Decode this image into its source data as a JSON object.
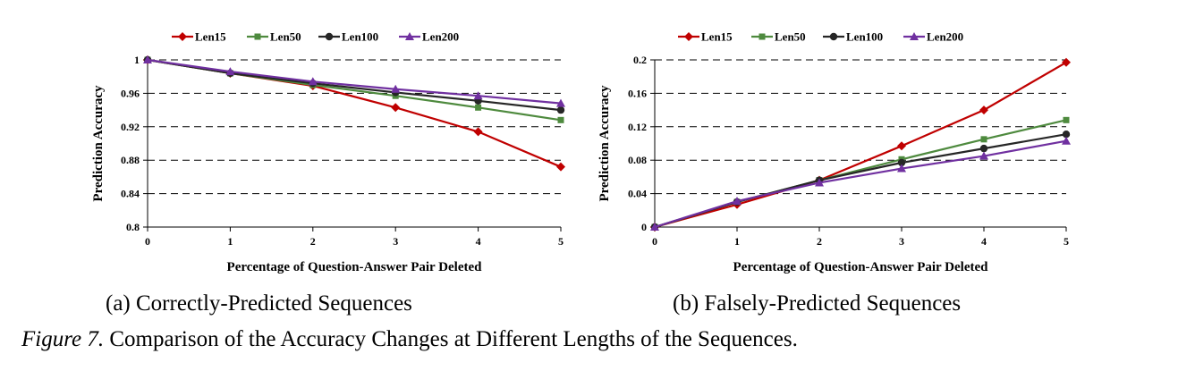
{
  "chart_data": [
    {
      "type": "line",
      "x": [
        0,
        1,
        2,
        3,
        4,
        5
      ],
      "xlabel": "Percentage of Question-Answer Pair Deleted",
      "ylabel": "Prediction Accuracy",
      "ylim": [
        0.8,
        1
      ],
      "yticks": [
        "0.8",
        "0.84",
        "0.88",
        "0.92",
        "0.96",
        "1"
      ],
      "xticks": [
        "0",
        "1",
        "2",
        "3",
        "4",
        "5"
      ],
      "grid": "horizontal-dashed",
      "legend": "top",
      "series": [
        {
          "name": "Len15",
          "color": "#c00000",
          "marker": "diamond",
          "values": [
            1.0,
            0.984,
            0.969,
            0.943,
            0.914,
            0.872
          ]
        },
        {
          "name": "Len50",
          "color": "#4e8a3e",
          "marker": "square",
          "values": [
            1.0,
            0.984,
            0.97,
            0.957,
            0.943,
            0.928
          ]
        },
        {
          "name": "Len100",
          "color": "#262626",
          "marker": "circle",
          "values": [
            1.0,
            0.984,
            0.972,
            0.961,
            0.951,
            0.94
          ]
        },
        {
          "name": "Len200",
          "color": "#7030a0",
          "marker": "triangle",
          "values": [
            1.0,
            0.986,
            0.974,
            0.965,
            0.957,
            0.948
          ]
        }
      ]
    },
    {
      "type": "line",
      "x": [
        0,
        1,
        2,
        3,
        4,
        5
      ],
      "xlabel": "Percentage of Question-Answer Pair Deleted",
      "ylabel": "Prediction Accuracy",
      "ylim": [
        0,
        0.2
      ],
      "yticks": [
        "0",
        "0.04",
        "0.08",
        "0.12",
        "0.16",
        "0.2"
      ],
      "xticks": [
        "0",
        "1",
        "2",
        "3",
        "4",
        "5"
      ],
      "grid": "horizontal-dashed",
      "legend": "top",
      "series": [
        {
          "name": "Len15",
          "color": "#c00000",
          "marker": "diamond",
          "values": [
            0,
            0.027,
            0.056,
            0.097,
            0.14,
            0.197
          ]
        },
        {
          "name": "Len50",
          "color": "#4e8a3e",
          "marker": "square",
          "values": [
            0,
            0.03,
            0.056,
            0.081,
            0.105,
            0.128
          ]
        },
        {
          "name": "Len100",
          "color": "#262626",
          "marker": "circle",
          "values": [
            0,
            0.03,
            0.056,
            0.077,
            0.094,
            0.111
          ]
        },
        {
          "name": "Len200",
          "color": "#7030a0",
          "marker": "triangle",
          "values": [
            0,
            0.031,
            0.053,
            0.07,
            0.085,
            0.103
          ]
        }
      ]
    }
  ],
  "captions": {
    "sub_a": "(a) Correctly-Predicted Sequences",
    "sub_b": "(b) Falsely-Predicted Sequences",
    "figure_label": "Figure 7.",
    "figure_text": " Comparison of the Accuracy Changes at Different Lengths of the Sequences."
  }
}
